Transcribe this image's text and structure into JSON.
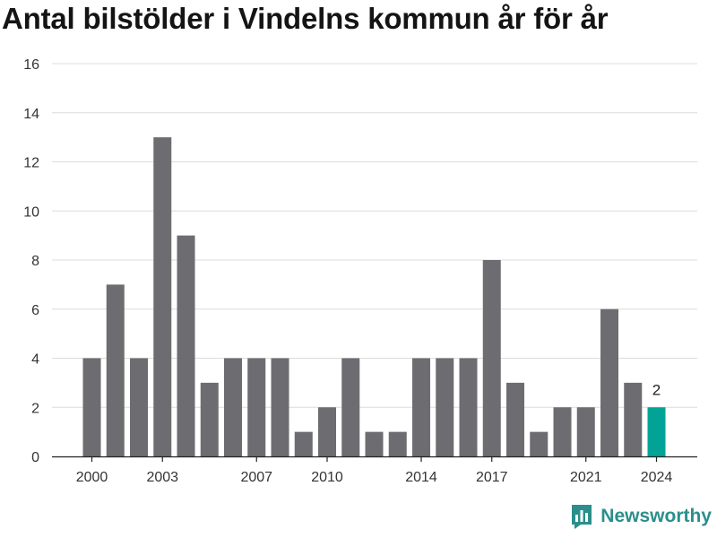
{
  "chart_data": {
    "type": "bar",
    "title": "Antal bilstölder i Vindelns kommun år för år",
    "xlabel": "",
    "ylabel": "",
    "categories": [
      "2000",
      "2001",
      "2002",
      "2003",
      "2004",
      "2005",
      "2006",
      "2007",
      "2008",
      "2009",
      "2010",
      "2011",
      "2012",
      "2013",
      "2014",
      "2015",
      "2016",
      "2017",
      "2018",
      "2019",
      "2020",
      "2021",
      "2022",
      "2023",
      "2024"
    ],
    "values": [
      4,
      7,
      4,
      13,
      9,
      3,
      4,
      4,
      4,
      1,
      2,
      4,
      1,
      1,
      4,
      4,
      4,
      8,
      3,
      1,
      2,
      2,
      6,
      3,
      2
    ],
    "ylim": [
      0,
      16
    ],
    "yticks": [
      0,
      2,
      4,
      6,
      8,
      10,
      12,
      14,
      16
    ],
    "xticks": [
      "2000",
      "2003",
      "2007",
      "2010",
      "2014",
      "2017",
      "2021",
      "2024"
    ],
    "highlight": {
      "category": "2024",
      "label": "2"
    },
    "grid": true,
    "colors": {
      "bar": "#6d6c71",
      "highlight": "#00a396",
      "grid": "#dcdcdc"
    }
  },
  "branding": {
    "name": "Newsworthy",
    "icon": "bar-chart-speech-bubble-icon",
    "color": "#2a8f8b"
  }
}
